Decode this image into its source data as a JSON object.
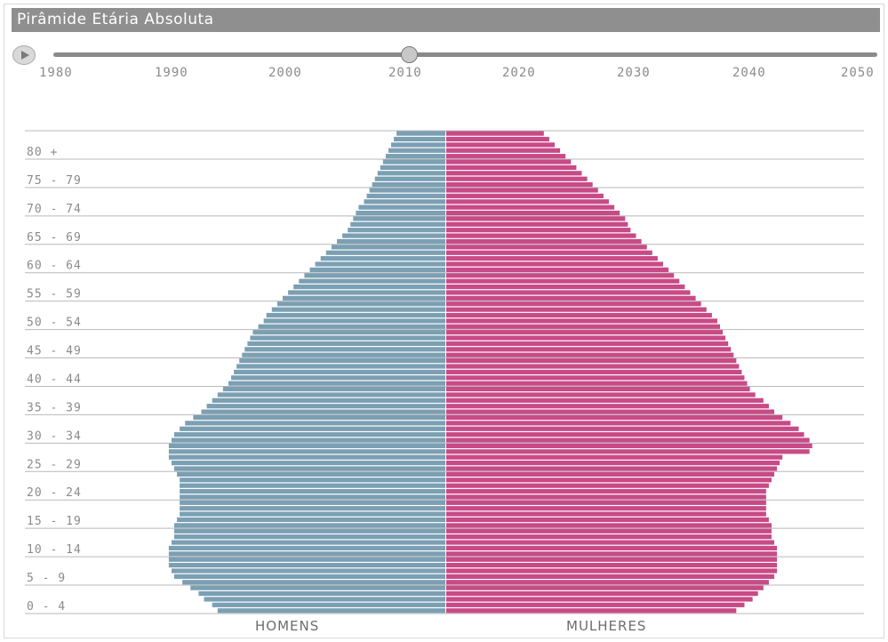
{
  "window": {
    "title": "Pirâmide Etária Absoluta"
  },
  "timeline": {
    "years": [
      "1980",
      "1990",
      "2000",
      "2010",
      "2020",
      "2030",
      "2040",
      "2050"
    ],
    "selected_year": 2010
  },
  "colors": {
    "men": "#7b9fb3",
    "women": "#c84a86",
    "rule": "#b9b9b9",
    "label": "#8a8a8a"
  },
  "chart_data": {
    "type": "bar",
    "orientation": "horizontal",
    "title": "Pirâmide Etária Absoluta",
    "age_groups": [
      "0 - 4",
      "5 - 9",
      "10 - 14",
      "15 - 19",
      "20 - 24",
      "25 - 29",
      "30 - 34",
      "35 - 39",
      "40 - 44",
      "45 - 49",
      "50 - 54",
      "55 - 59",
      "60 - 64",
      "65 - 69",
      "70 - 74",
      "75 - 79",
      "80 +"
    ],
    "single_years": [
      0,
      84
    ],
    "series": [
      {
        "name": "HOMENS",
        "values": [
          84,
          86,
          89,
          91,
          94,
          97,
          100,
          101,
          102,
          102,
          102,
          102,
          101,
          100,
          100,
          100,
          99,
          98,
          98,
          98,
          98,
          98,
          98,
          98,
          99,
          100,
          101,
          102,
          102,
          102,
          101,
          100,
          98,
          96,
          93,
          90,
          88,
          86,
          84,
          82,
          80,
          79,
          78,
          77,
          76,
          75,
          74,
          73,
          72,
          71,
          69,
          67,
          66,
          64,
          62,
          60,
          58,
          56,
          54,
          52,
          50,
          48,
          46,
          44,
          42,
          40,
          38,
          36,
          35,
          34,
          33,
          32,
          30,
          29,
          28,
          27,
          26,
          25,
          24,
          23,
          22,
          21,
          20,
          19,
          18
        ]
      },
      {
        "name": "MULHERES",
        "values": [
          107,
          110,
          113,
          115,
          117,
          119,
          121,
          122,
          122,
          122,
          122,
          122,
          121,
          120,
          120,
          120,
          119,
          118,
          118,
          118,
          118,
          118,
          119,
          120,
          121,
          122,
          123,
          124,
          134,
          135,
          134,
          132,
          130,
          127,
          124,
          121,
          119,
          117,
          114,
          112,
          111,
          110,
          109,
          108,
          107,
          106,
          105,
          104,
          103,
          102,
          101,
          100,
          98,
          96,
          94,
          92,
          90,
          88,
          86,
          84,
          82,
          80,
          78,
          76,
          74,
          72,
          70,
          68,
          67,
          66,
          64,
          62,
          60,
          58,
          56,
          54,
          52,
          50,
          48,
          46,
          44,
          42,
          40,
          38,
          36
        ]
      }
    ],
    "xlim": [
      0,
      140
    ],
    "grid": true,
    "legend": "bottom"
  }
}
